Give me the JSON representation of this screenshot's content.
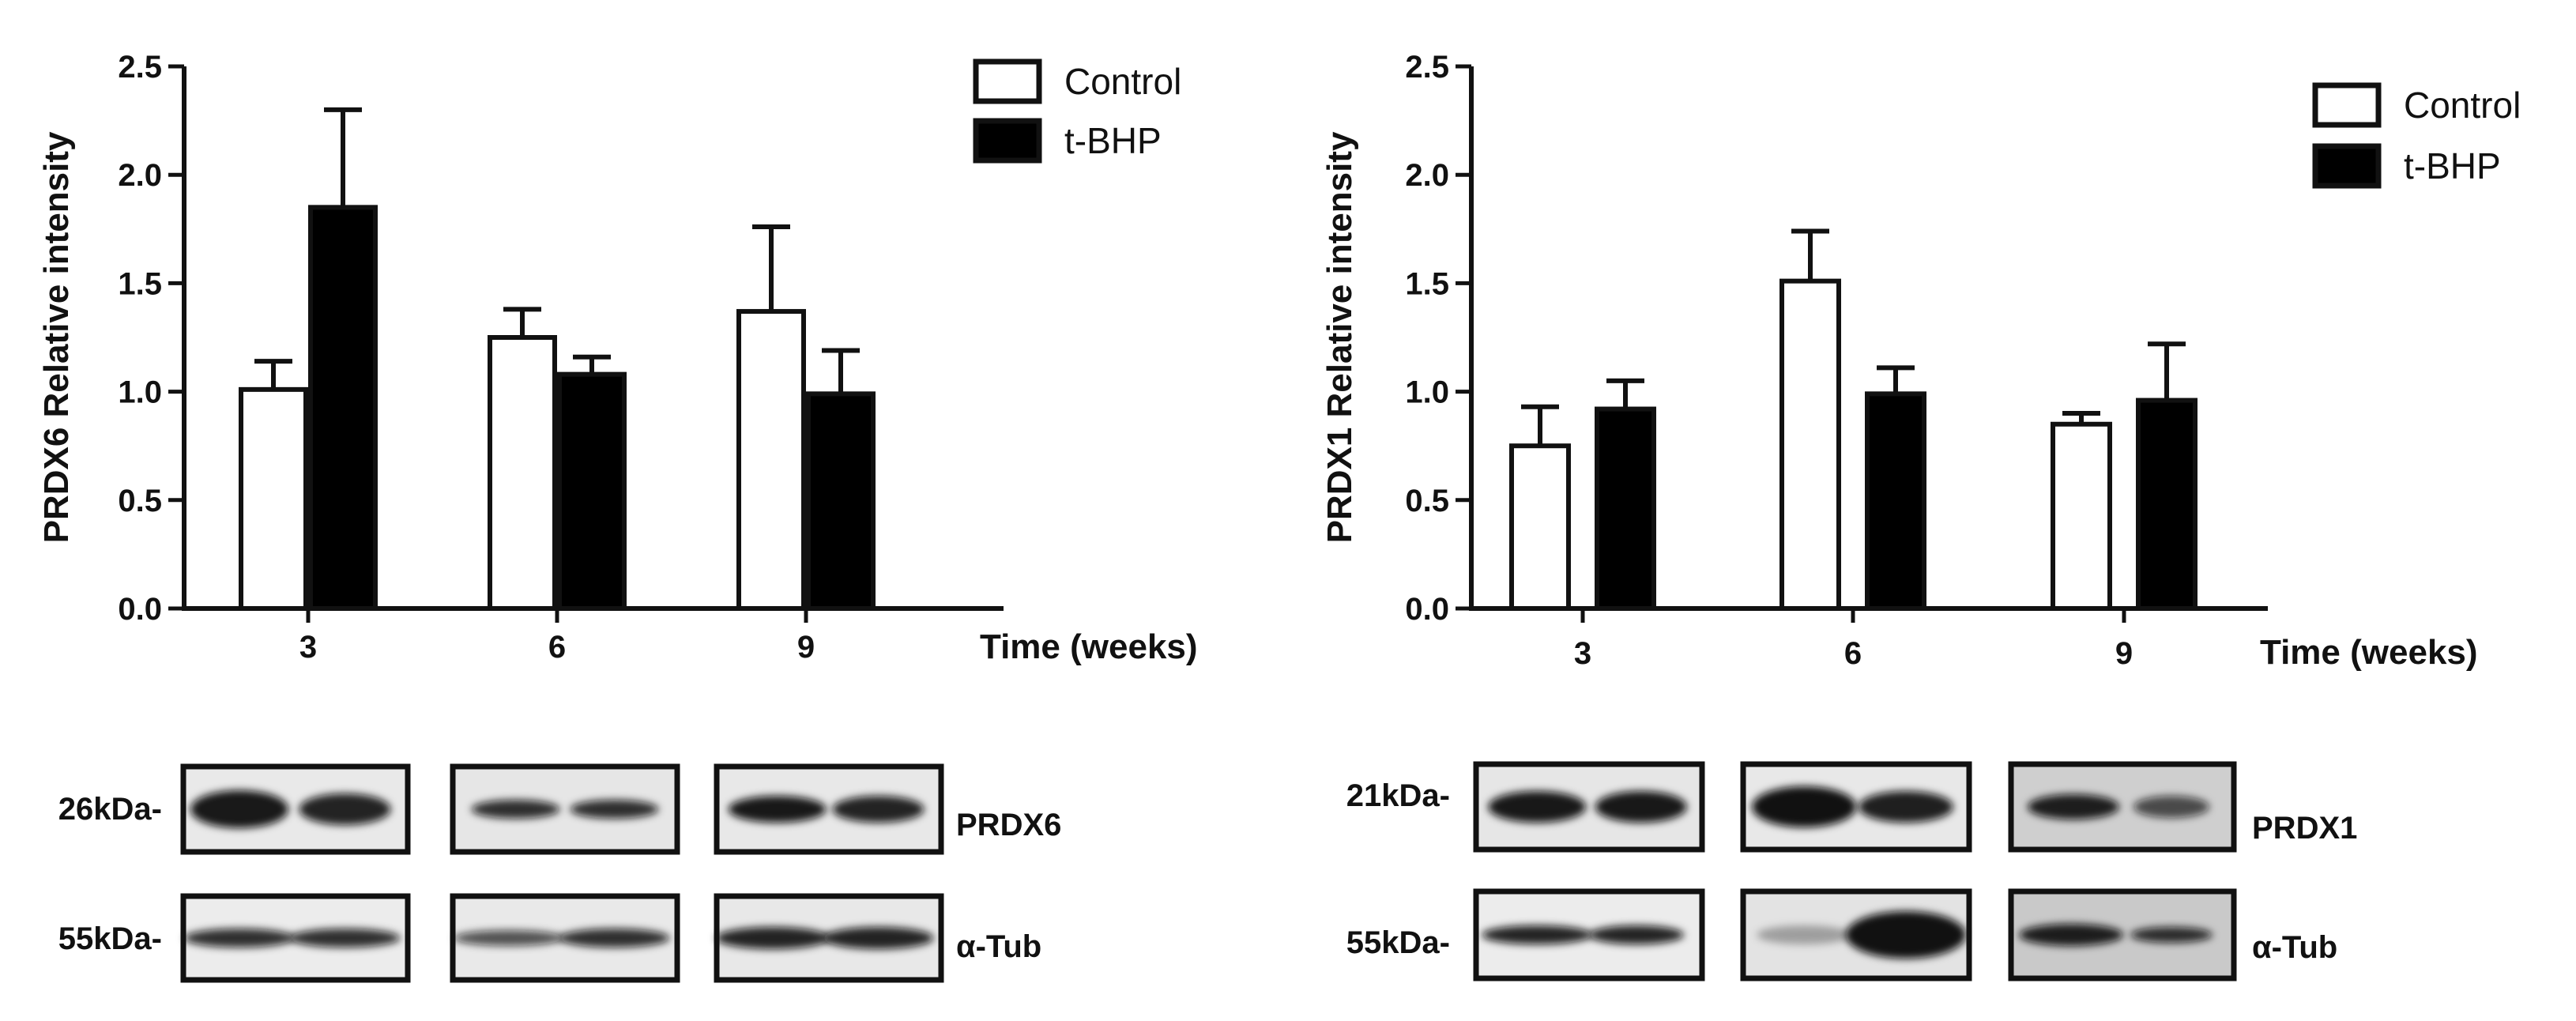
{
  "chart_data": [
    {
      "type": "bar",
      "categories": [
        "3",
        "6",
        "9"
      ],
      "xlabel": "Time (weeks)",
      "ylabel": "PRDX6 Relative intensity",
      "ylim": [
        0,
        2.5
      ],
      "yticks": [
        "0.0",
        "0.5",
        "1.0",
        "1.5",
        "2.0",
        "2.5"
      ],
      "legend_position": "top-right",
      "series": [
        {
          "name": "Control",
          "values": [
            1.01,
            1.25,
            1.37
          ],
          "errors": [
            0.13,
            0.13,
            0.39
          ],
          "fill": "#ffffff"
        },
        {
          "name": "t-BHP",
          "values": [
            1.85,
            1.08,
            0.99
          ],
          "errors": [
            0.45,
            0.08,
            0.2
          ],
          "fill": "#000000"
        }
      ]
    },
    {
      "type": "bar",
      "categories": [
        "3",
        "6",
        "9"
      ],
      "xlabel": "Time (weeks)",
      "ylabel": "PRDX1 Relative intensity",
      "ylim": [
        0,
        2.5
      ],
      "yticks": [
        "0.0",
        "0.5",
        "1.0",
        "1.5",
        "2.0",
        "2.5"
      ],
      "legend_position": "top-right",
      "series": [
        {
          "name": "Control",
          "values": [
            0.75,
            1.51,
            0.85
          ],
          "errors": [
            0.18,
            0.23,
            0.05
          ],
          "fill": "#ffffff"
        },
        {
          "name": "t-BHP",
          "values": [
            0.92,
            0.99,
            0.96
          ],
          "errors": [
            0.13,
            0.12,
            0.26
          ],
          "fill": "#000000"
        }
      ]
    }
  ],
  "blots": [
    {
      "rows": [
        {
          "marker": "26kDa-",
          "protein": "PRDX6"
        },
        {
          "marker": "55kDa-",
          "protein": "α-Tub"
        }
      ]
    },
    {
      "rows": [
        {
          "marker": "21kDa-",
          "protein": "PRDX1"
        },
        {
          "marker": "55kDa-",
          "protein": "α-Tub"
        }
      ]
    }
  ]
}
